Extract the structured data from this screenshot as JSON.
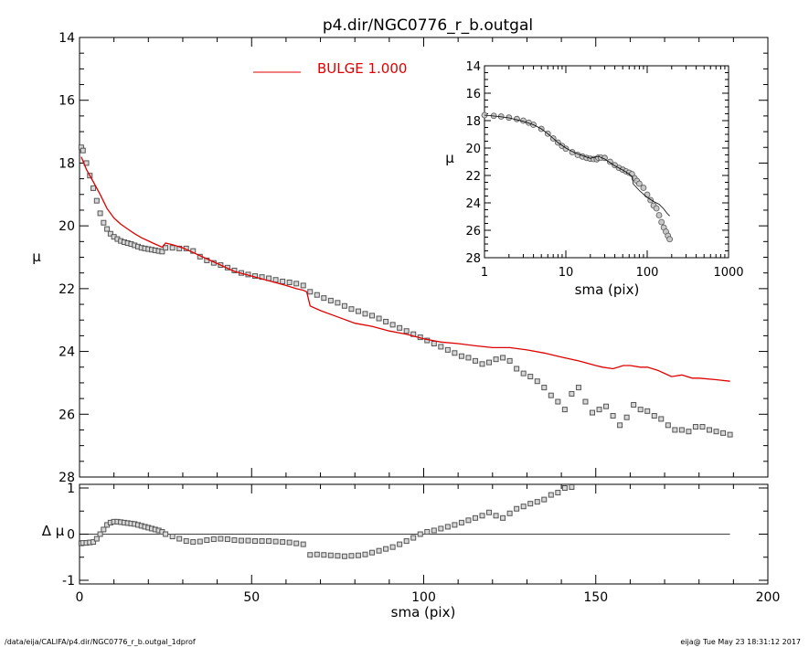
{
  "title": "p4.dir/NGC0776_r_b.outgal",
  "footer": {
    "left": "/data/eija/CALIFA/p4.dir/NGC0776_r_b.outgal_1dprof",
    "right": "eija@  Tue May 23 18:31:12 2017"
  },
  "colors": {
    "model": "#e00000",
    "data": "#555555",
    "axes": "#000000"
  },
  "chart_data": [
    {
      "panel": "main",
      "type": "scatter",
      "ylabel": "μ",
      "xlim": [
        0,
        200
      ],
      "ylim": [
        28,
        14
      ],
      "y_inverted": true,
      "x_ticks": [
        "0",
        "50",
        "100",
        "150",
        "200"
      ],
      "y_ticks": [
        "14",
        "16",
        "18",
        "20",
        "22",
        "24",
        "26",
        "28"
      ],
      "legend": {
        "label": "BULGE  1.000",
        "placement": "top-center"
      },
      "series": [
        {
          "kind": "data",
          "marker": "square",
          "x": [
            0.5,
            1,
            2,
            3,
            4,
            5,
            6,
            7,
            8,
            9,
            10,
            11,
            12,
            13,
            14,
            15,
            16,
            17,
            18,
            19,
            20,
            21,
            22,
            23,
            24,
            25,
            27,
            29,
            31,
            33,
            35,
            37,
            39,
            41,
            43,
            45,
            47,
            49,
            51,
            53,
            55,
            57,
            59,
            61,
            63,
            65,
            67,
            69,
            71,
            73,
            75,
            77,
            79,
            81,
            83,
            85,
            87,
            89,
            91,
            93,
            95,
            97,
            99,
            101,
            103,
            105,
            107,
            109,
            111,
            113,
            115,
            117,
            119,
            121,
            123,
            125,
            127,
            129,
            131,
            133,
            135,
            137,
            139,
            141,
            143,
            145,
            147,
            149,
            151,
            153,
            155,
            157,
            159,
            161,
            163,
            165,
            167,
            169,
            171,
            173,
            175,
            177,
            179,
            181,
            183,
            185,
            187,
            189
          ],
          "y": [
            17.5,
            17.6,
            18.0,
            18.4,
            18.8,
            19.2,
            19.6,
            19.9,
            20.1,
            20.25,
            20.35,
            20.42,
            20.48,
            20.52,
            20.55,
            20.58,
            20.62,
            20.66,
            20.7,
            20.72,
            20.74,
            20.76,
            20.78,
            20.8,
            20.82,
            20.7,
            20.7,
            20.72,
            20.72,
            20.8,
            20.98,
            21.1,
            21.18,
            21.25,
            21.33,
            21.42,
            21.5,
            21.55,
            21.6,
            21.63,
            21.67,
            21.72,
            21.77,
            21.8,
            21.84,
            21.9,
            22.1,
            22.2,
            22.3,
            22.38,
            22.45,
            22.55,
            22.65,
            22.72,
            22.8,
            22.86,
            22.95,
            23.05,
            23.15,
            23.25,
            23.35,
            23.45,
            23.55,
            23.65,
            23.75,
            23.85,
            23.95,
            24.05,
            24.15,
            24.2,
            24.3,
            24.4,
            24.35,
            24.25,
            24.2,
            24.3,
            24.55,
            24.7,
            24.8,
            24.95,
            25.15,
            25.4,
            25.6,
            25.85,
            25.35,
            25.15,
            25.6,
            25.95,
            25.85,
            25.75,
            26.05,
            26.35,
            26.1,
            25.7,
            25.85,
            25.9,
            26.05,
            26.15,
            26.35,
            26.5,
            26.5,
            26.55,
            26.4,
            26.4,
            26.5,
            26.55,
            26.6,
            26.65
          ]
        },
        {
          "kind": "model",
          "name": "BULGE  1.000",
          "x": [
            0.5,
            2,
            4,
            6,
            8,
            10,
            12,
            14,
            16,
            18,
            20,
            22,
            24,
            25,
            27,
            30,
            33,
            36,
            40,
            45,
            50,
            55,
            60,
            63,
            65,
            66,
            67,
            70,
            75,
            80,
            85,
            90,
            95,
            100,
            105,
            110,
            115,
            120,
            125,
            130,
            135,
            140,
            145,
            150,
            152,
            155,
            158,
            160,
            163,
            165,
            168,
            170,
            172,
            175,
            178,
            180,
            185,
            189
          ],
          "y": [
            17.8,
            18.2,
            18.6,
            19.0,
            19.45,
            19.75,
            19.95,
            20.1,
            20.25,
            20.38,
            20.48,
            20.58,
            20.68,
            20.55,
            20.6,
            20.7,
            20.85,
            21.0,
            21.2,
            21.45,
            21.6,
            21.75,
            21.9,
            22.0,
            22.05,
            22.1,
            22.55,
            22.7,
            22.9,
            23.1,
            23.2,
            23.35,
            23.45,
            23.6,
            23.7,
            23.75,
            23.82,
            23.88,
            23.88,
            23.95,
            24.05,
            24.18,
            24.3,
            24.45,
            24.5,
            24.55,
            24.45,
            24.45,
            24.5,
            24.5,
            24.6,
            24.7,
            24.8,
            24.75,
            24.85,
            24.85,
            24.9,
            24.95
          ]
        }
      ]
    },
    {
      "panel": "inset",
      "type": "scatter",
      "xlabel": "sma (pix)",
      "ylabel": "μ",
      "x_scale": "log",
      "xlim": [
        1,
        1000
      ],
      "ylim": [
        28,
        14
      ],
      "y_inverted": true,
      "x_ticks": [
        "1",
        "10",
        "100",
        "1000"
      ],
      "y_ticks": [
        "14",
        "16",
        "18",
        "20",
        "22",
        "24",
        "26",
        "28"
      ],
      "series": [
        {
          "kind": "data",
          "x": [
            1.0,
            1.3,
            1.6,
            2,
            2.5,
            3,
            3.5,
            4,
            5,
            6,
            7,
            8,
            9,
            10,
            12,
            14,
            16,
            18,
            20,
            22,
            24,
            25,
            27,
            30,
            35,
            40,
            45,
            50,
            55,
            60,
            65,
            70,
            75,
            80,
            90,
            100,
            110,
            120,
            130,
            140,
            150,
            160,
            170,
            180,
            189
          ],
          "y": [
            17.6,
            17.65,
            17.7,
            17.78,
            17.88,
            18.0,
            18.15,
            18.3,
            18.6,
            18.95,
            19.3,
            19.6,
            19.85,
            20.05,
            20.3,
            20.5,
            20.62,
            20.72,
            20.78,
            20.8,
            20.82,
            20.7,
            20.7,
            20.72,
            21.0,
            21.25,
            21.45,
            21.58,
            21.7,
            21.8,
            21.9,
            22.2,
            22.4,
            22.6,
            22.9,
            23.4,
            23.8,
            24.2,
            24.4,
            24.9,
            25.4,
            25.8,
            26.1,
            26.4,
            26.65
          ]
        },
        {
          "kind": "model",
          "x": [
            1.0,
            1.5,
            2,
            3,
            4,
            5,
            6,
            7,
            8,
            10,
            12,
            15,
            20,
            25,
            30,
            40,
            50,
            60,
            66,
            67,
            80,
            100,
            120,
            140,
            160,
            175,
            189
          ],
          "y": [
            17.6,
            17.7,
            17.8,
            18.05,
            18.3,
            18.6,
            18.95,
            19.3,
            19.6,
            20.0,
            20.25,
            20.5,
            20.75,
            20.6,
            20.8,
            21.3,
            21.6,
            21.9,
            22.1,
            22.6,
            23.1,
            23.6,
            23.9,
            24.1,
            24.45,
            24.75,
            24.95
          ]
        }
      ]
    },
    {
      "panel": "residual",
      "type": "scatter",
      "xlabel": "sma (pix)",
      "ylabel": "Δ μ",
      "xlim": [
        0,
        200
      ],
      "ylim": [
        -1,
        1
      ],
      "x_ticks": [
        "0",
        "50",
        "100",
        "150",
        "200"
      ],
      "y_ticks": [
        "1",
        "0",
        "-1"
      ],
      "reference_line": 0,
      "series": [
        {
          "kind": "residual",
          "marker": "square",
          "x": [
            0.5,
            1,
            2,
            3,
            4,
            5,
            6,
            7,
            8,
            9,
            10,
            11,
            12,
            13,
            14,
            15,
            16,
            17,
            18,
            19,
            20,
            21,
            22,
            23,
            24,
            25,
            27,
            29,
            31,
            33,
            35,
            37,
            39,
            41,
            43,
            45,
            47,
            49,
            51,
            53,
            55,
            57,
            59,
            61,
            63,
            65,
            67,
            69,
            71,
            73,
            75,
            77,
            79,
            81,
            83,
            85,
            87,
            89,
            91,
            93,
            95,
            97,
            99,
            101,
            103,
            105,
            107,
            109,
            111,
            113,
            115,
            117,
            119,
            121,
            123,
            125,
            127,
            129,
            131,
            133,
            135,
            137,
            139,
            141,
            143
          ],
          "y": [
            -0.2,
            -0.19,
            -0.19,
            -0.18,
            -0.17,
            -0.1,
            0.0,
            0.1,
            0.2,
            0.25,
            0.27,
            0.27,
            0.26,
            0.25,
            0.24,
            0.23,
            0.22,
            0.2,
            0.18,
            0.16,
            0.14,
            0.12,
            0.1,
            0.08,
            0.05,
            0.0,
            -0.05,
            -0.1,
            -0.15,
            -0.17,
            -0.16,
            -0.13,
            -0.11,
            -0.1,
            -0.11,
            -0.13,
            -0.14,
            -0.14,
            -0.15,
            -0.15,
            -0.15,
            -0.16,
            -0.17,
            -0.18,
            -0.2,
            -0.22,
            -0.45,
            -0.44,
            -0.45,
            -0.46,
            -0.47,
            -0.48,
            -0.47,
            -0.46,
            -0.44,
            -0.4,
            -0.36,
            -0.32,
            -0.28,
            -0.22,
            -0.15,
            -0.08,
            0.0,
            0.05,
            0.08,
            0.12,
            0.16,
            0.2,
            0.25,
            0.3,
            0.35,
            0.4,
            0.47,
            0.4,
            0.35,
            0.45,
            0.55,
            0.6,
            0.66,
            0.7,
            0.75,
            0.85,
            0.9,
            1.0,
            1.02
          ]
        }
      ]
    }
  ]
}
